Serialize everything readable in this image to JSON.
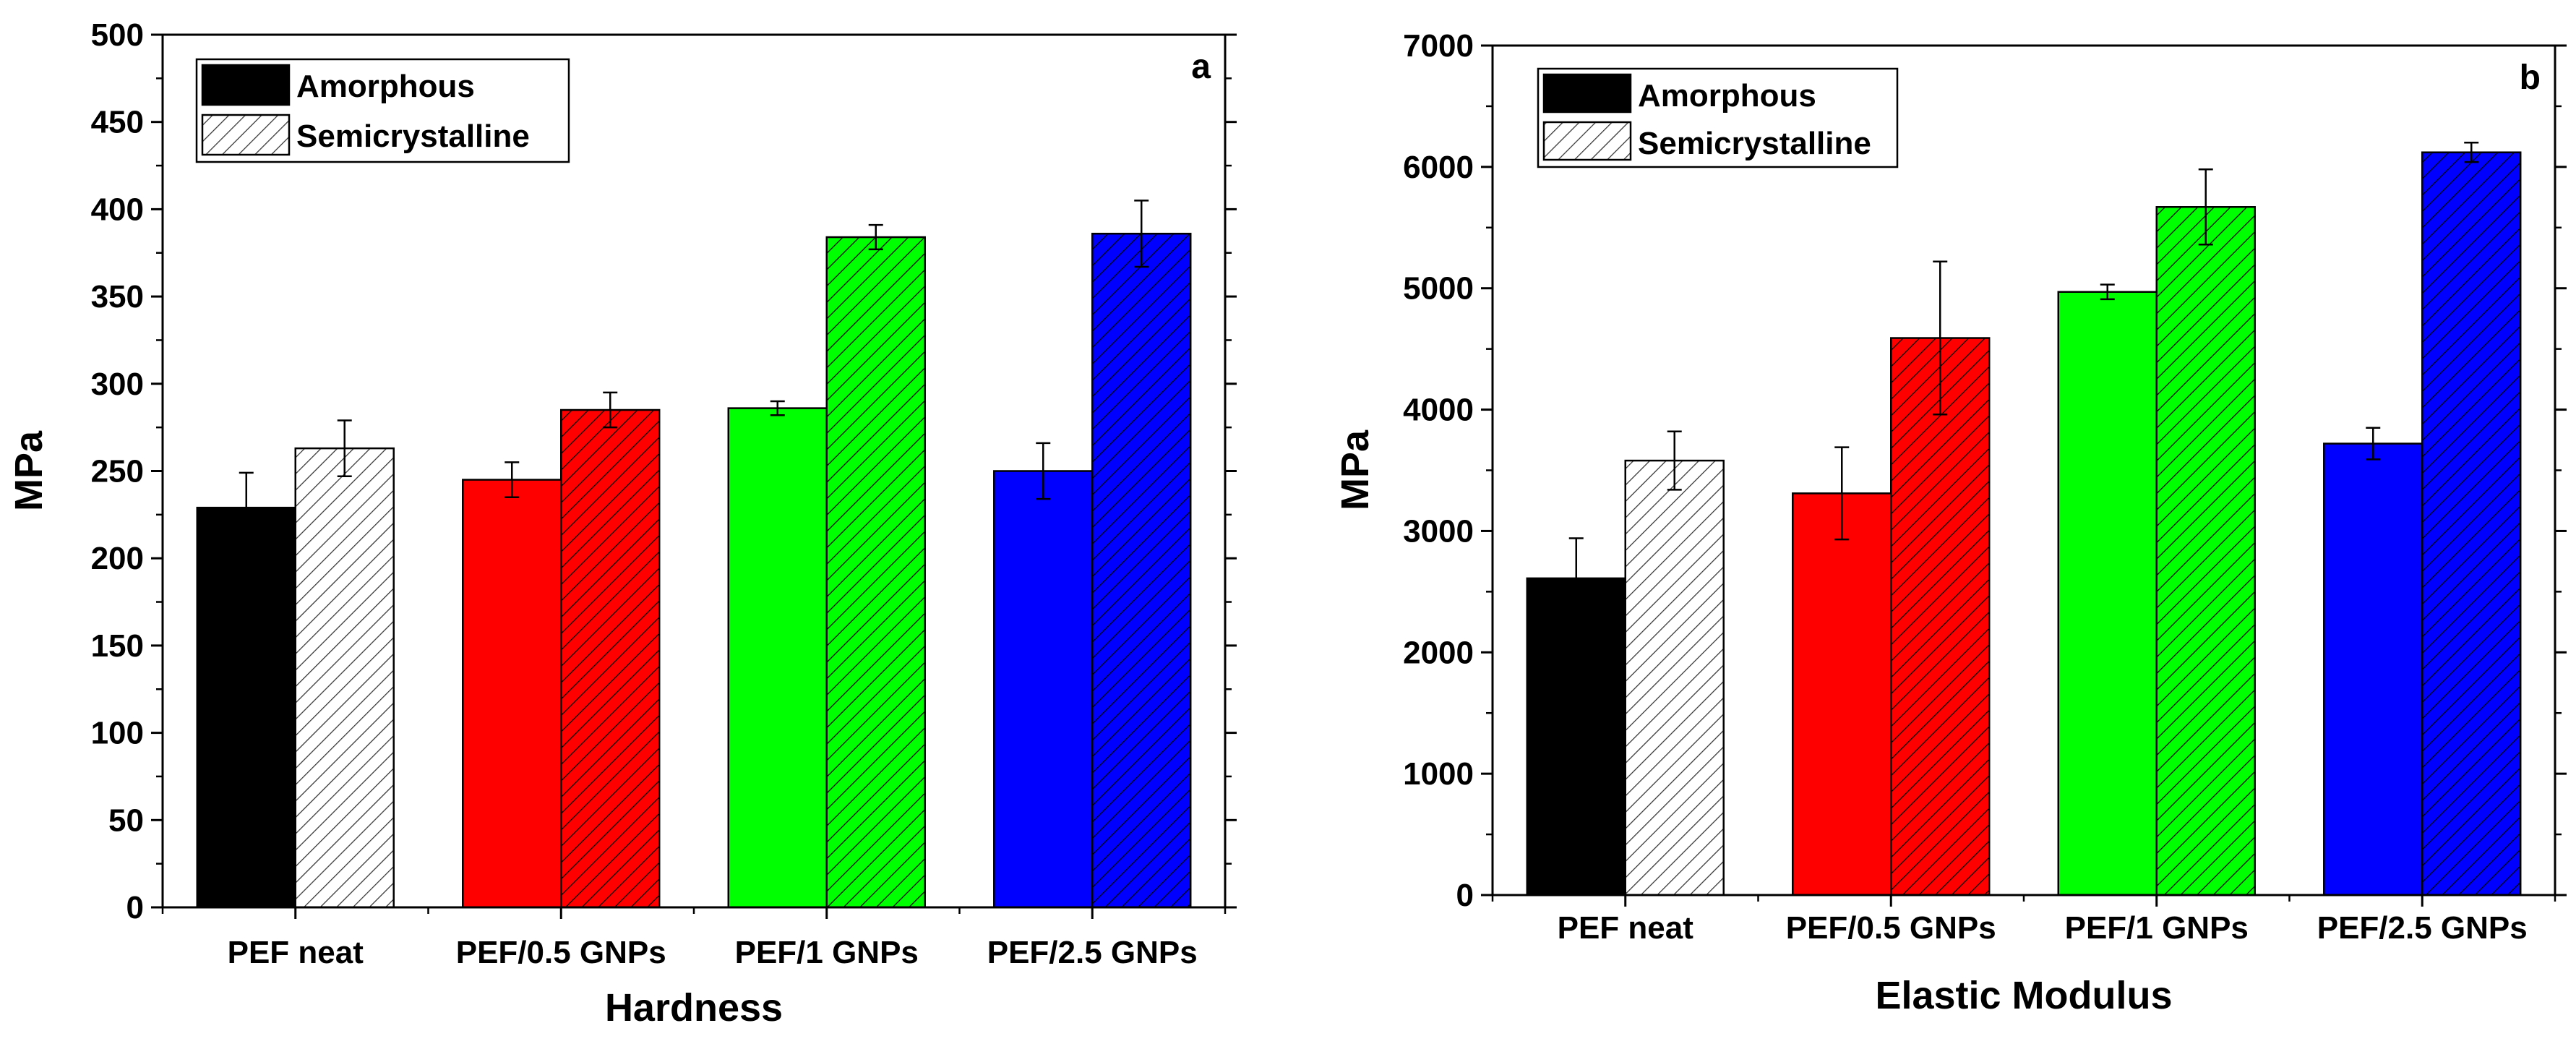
{
  "chart_data": [
    {
      "type": "bar",
      "panel_label": "a",
      "title": "",
      "xlabel": "Hardness",
      "ylabel": "MPa",
      "ylim": [
        0,
        500
      ],
      "ytick_step": 50,
      "categories": [
        "PEF neat",
        "PEF/0.5 GNPs",
        "PEF/1 GNPs",
        "PEF/2.5 GNPs"
      ],
      "colors": [
        "#000000",
        "#ff0000",
        "#00ff00",
        "#0000ff"
      ],
      "legend_position": "top-left",
      "series": [
        {
          "name": "Amorphous",
          "pattern": "solid",
          "values": [
            229,
            245,
            286,
            250
          ],
          "errors": [
            20,
            10,
            4,
            16
          ]
        },
        {
          "name": "Semicrystalline",
          "pattern": "hatched",
          "values": [
            263,
            285,
            384,
            386
          ],
          "errors": [
            16,
            10,
            7,
            19
          ]
        }
      ]
    },
    {
      "type": "bar",
      "panel_label": "b",
      "title": "",
      "xlabel": "Elastic Modulus",
      "ylabel": "MPa",
      "ylim": [
        0,
        7000
      ],
      "ytick_step": 1000,
      "categories": [
        "PEF neat",
        "PEF/0.5 GNPs",
        "PEF/1 GNPs",
        "PEF/2.5 GNPs"
      ],
      "colors": [
        "#000000",
        "#ff0000",
        "#00ff00",
        "#0000ff"
      ],
      "legend_position": "top-left",
      "series": [
        {
          "name": "Amorphous",
          "pattern": "solid",
          "values": [
            2610,
            3310,
            4970,
            3720
          ],
          "errors": [
            330,
            380,
            60,
            130
          ]
        },
        {
          "name": "Semicrystalline",
          "pattern": "hatched",
          "values": [
            3580,
            4590,
            5670,
            6120
          ],
          "errors": [
            240,
            630,
            310,
            80
          ]
        }
      ]
    }
  ]
}
